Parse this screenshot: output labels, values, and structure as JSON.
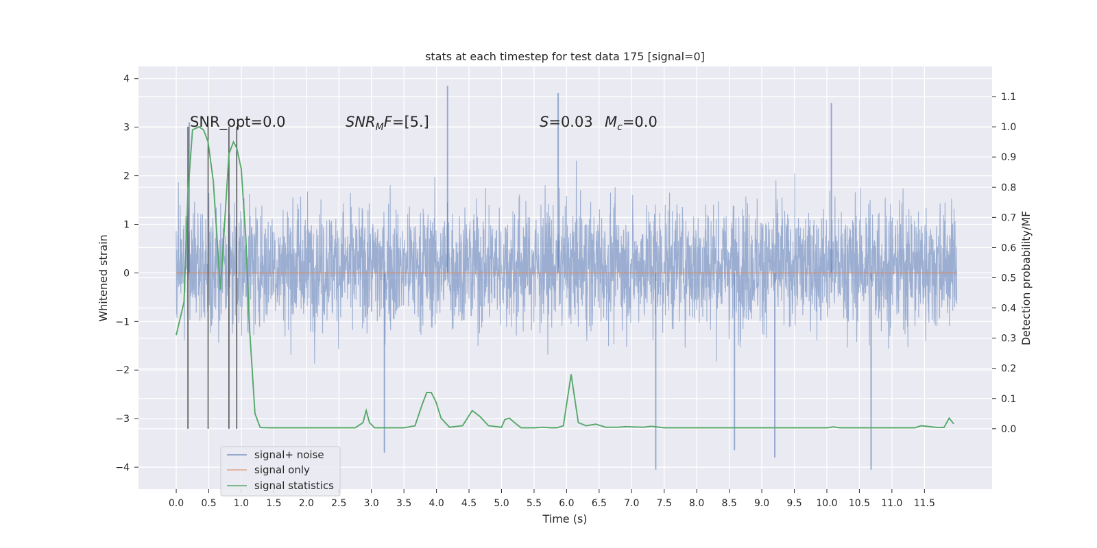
{
  "chart_data": {
    "type": "line",
    "title": "stats at each timestep for test data 175 [signal=0]",
    "xlabel": "Time (s)",
    "ylabel_left": "Whitened strain",
    "ylabel_right": "Detection probability/MF",
    "xlim": [
      -0.58,
      12.54
    ],
    "ylim_left": [
      -4.45,
      4.25
    ],
    "ylim_right": [
      -0.2,
      1.2
    ],
    "x_ticks": [
      "0.0",
      "0.5",
      "1.0",
      "1.5",
      "2.0",
      "2.5",
      "3.0",
      "3.5",
      "4.0",
      "4.5",
      "5.0",
      "5.5",
      "6.0",
      "6.5",
      "7.0",
      "7.5",
      "8.0",
      "8.5",
      "9.0",
      "9.5",
      "10.0",
      "10.5",
      "11.0",
      "11.5"
    ],
    "y_ticks_left": [
      "−4",
      "−3",
      "−2",
      "−1",
      "0",
      "1",
      "2",
      "3",
      "4"
    ],
    "y_ticks_right": [
      "0.0",
      "0.1",
      "0.2",
      "0.3",
      "0.4",
      "0.5",
      "0.6",
      "0.7",
      "0.8",
      "0.9",
      "1.0",
      "1.1"
    ],
    "grid": true,
    "legend_position": "lower-left",
    "annotations": {
      "snr_opt": "SNR_opt=0.0",
      "snr_mf": "[5.]",
      "s_value": "=0.03",
      "mc_value": "=0.0"
    },
    "vertical_markers_x": [
      0.18,
      0.49,
      0.81,
      0.93
    ],
    "series": [
      {
        "name": "signal+ noise",
        "color": "#4c72b0",
        "axis": "left",
        "x_range": [
          0.0,
          12.0
        ],
        "typical_band": [
          -1.9,
          2.4
        ],
        "extremes": [
          [
            0.2,
            3.1
          ],
          [
            4.17,
            3.85
          ],
          [
            5.87,
            3.7
          ],
          [
            10.07,
            3.5
          ],
          [
            3.2,
            -3.7
          ],
          [
            7.37,
            -4.05
          ],
          [
            10.68,
            -4.05
          ],
          [
            9.2,
            -3.8
          ],
          [
            8.58,
            -3.65
          ]
        ]
      },
      {
        "name": "signal only",
        "color": "#dd8452",
        "axis": "left",
        "x": [
          0.0,
          12.0
        ],
        "values": [
          0.0,
          0.0
        ]
      },
      {
        "name": "signal statistics",
        "color": "#55a868",
        "axis": "right",
        "x": [
          0.0,
          0.12,
          0.18,
          0.25,
          0.35,
          0.42,
          0.49,
          0.57,
          0.68,
          0.81,
          0.88,
          0.93,
          1.0,
          1.07,
          1.13,
          1.21,
          1.29,
          1.45,
          2.0,
          2.5,
          2.75,
          2.87,
          2.92,
          2.97,
          3.05,
          3.2,
          3.5,
          3.67,
          3.78,
          3.85,
          3.92,
          3.99,
          4.07,
          4.2,
          4.4,
          4.55,
          4.67,
          4.8,
          5.0,
          5.05,
          5.12,
          5.2,
          5.3,
          5.5,
          5.65,
          5.75,
          5.85,
          5.95,
          6.07,
          6.18,
          6.3,
          6.45,
          6.6,
          6.8,
          6.9,
          7.0,
          7.18,
          7.3,
          7.5,
          8.0,
          9.0,
          10.0,
          10.1,
          10.2,
          11.0,
          11.35,
          11.45,
          11.7,
          11.8,
          11.88,
          11.95
        ],
        "values": [
          0.31,
          0.42,
          0.78,
          0.99,
          1.0,
          0.99,
          0.95,
          0.82,
          0.46,
          0.91,
          0.95,
          0.93,
          0.86,
          0.63,
          0.32,
          0.05,
          0.004,
          0.003,
          0.003,
          0.003,
          0.003,
          0.02,
          0.06,
          0.02,
          0.003,
          0.003,
          0.003,
          0.01,
          0.08,
          0.12,
          0.12,
          0.09,
          0.035,
          0.005,
          0.01,
          0.06,
          0.04,
          0.01,
          0.005,
          0.03,
          0.035,
          0.02,
          0.003,
          0.003,
          0.005,
          0.003,
          0.003,
          0.01,
          0.18,
          0.02,
          0.01,
          0.015,
          0.005,
          0.005,
          0.007,
          0.006,
          0.005,
          0.008,
          0.003,
          0.003,
          0.003,
          0.003,
          0.006,
          0.003,
          0.003,
          0.003,
          0.01,
          0.004,
          0.004,
          0.035,
          0.016
        ]
      }
    ]
  }
}
